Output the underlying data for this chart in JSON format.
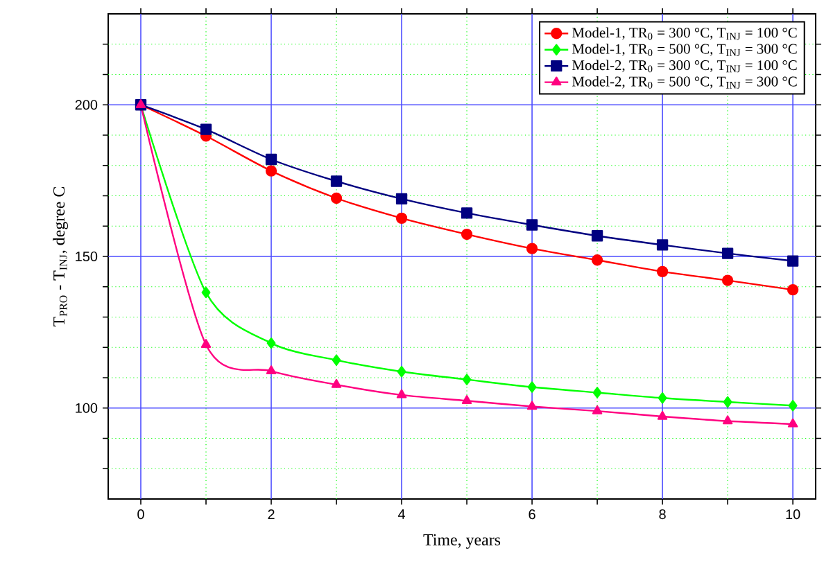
{
  "chart_data": {
    "type": "line",
    "xlabel": "Time, years",
    "ylabel": "T$_{PRO}$ - T$_{INJ}$, degree C",
    "x": [
      0,
      1,
      2,
      3,
      4,
      5,
      6,
      7,
      8,
      9,
      10
    ],
    "series": [
      {
        "name": "Model-1, TR$_{0}$ = 300 °C, T$_{INJ}$ = 100 °C",
        "color": "#ff0000",
        "marker": "circle",
        "values": [
          200,
          189.7,
          178.2,
          169.2,
          162.6,
          157.3,
          152.6,
          148.8,
          145,
          142.1,
          139
        ]
      },
      {
        "name": "Model-1, TR$_{0}$ = 500 °C, T$_{INJ}$ = 300 °C",
        "color": "#00ff00",
        "marker": "diamond",
        "values": [
          200,
          138.1,
          121.4,
          115.8,
          112,
          109.4,
          106.9,
          105.1,
          103.3,
          102,
          100.8
        ]
      },
      {
        "name": "Model-2, TR$_{0}$ = 300 °C, T$_{INJ}$ = 100 °C",
        "color": "#000080",
        "marker": "square",
        "values": [
          200,
          191.9,
          182,
          174.8,
          169,
          164.3,
          160.4,
          156.8,
          153.8,
          151,
          148.5
        ]
      },
      {
        "name": "Model-2, TR$_{0}$ = 500 °C, T$_{INJ}$ = 300 °C",
        "color": "#ff0080",
        "marker": "triangle",
        "values": [
          200,
          120.9,
          112.2,
          107.7,
          104.3,
          102.4,
          100.5,
          99,
          97.2,
          95.7,
          94.7
        ]
      }
    ],
    "xlim": [
      -0.5,
      10.35
    ],
    "ylim": [
      70,
      230
    ],
    "xticks": [
      0,
      {
        "value": 1,
        "label": null
      },
      2,
      {
        "value": 3,
        "label": null
      },
      4,
      {
        "value": 5,
        "label": null
      },
      6,
      {
        "value": 7,
        "label": null
      },
      8,
      {
        "value": 9,
        "label": null
      },
      10
    ],
    "yticks": [
      {
        "value": 80,
        "label": null
      },
      {
        "value": 90,
        "label": null
      },
      100,
      {
        "value": 110,
        "label": null
      },
      {
        "value": 120,
        "label": null
      },
      {
        "value": 130,
        "label": null
      },
      {
        "value": 140,
        "label": null
      },
      150,
      {
        "value": 160,
        "label": null
      },
      {
        "value": 170,
        "label": null
      },
      {
        "value": 180,
        "label": null
      },
      {
        "value": 190,
        "label": null
      },
      200,
      {
        "value": 210,
        "label": null
      },
      {
        "value": 220,
        "label": null
      }
    ],
    "grid": true,
    "legend": "top right",
    "line_style": "solid"
  }
}
